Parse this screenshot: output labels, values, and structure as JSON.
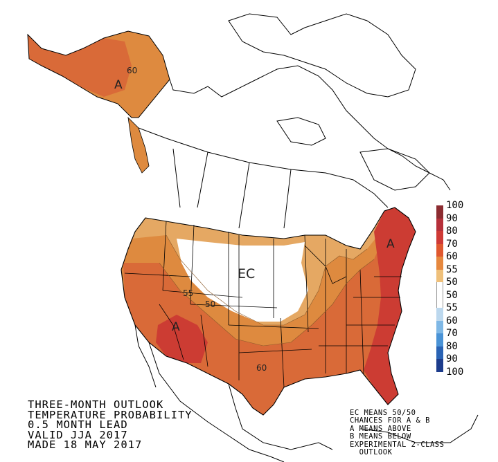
{
  "title_lines": [
    "THREE-MONTH OUTLOOK",
    "TEMPERATURE PROBABILITY",
    "0.5 MONTH LEAD",
    "VALID JJA 2017",
    "MADE 18 MAY 2017"
  ],
  "notes_lines": [
    "EC MEANS 50/50",
    "CHANCES FOR A & B",
    "A MEANS ABOVE",
    "B MEANS BELOW",
    "EXPERIMENTAL 2-CLASS",
    "  OUTLOOK"
  ],
  "map_labels": {
    "alaska_a": "A",
    "alaska_60": "60",
    "northeast_a": "A",
    "southwest_a": "A",
    "ec": "EC",
    "contour_55": "55",
    "contour_50": "50",
    "contour_60": "60"
  },
  "legend": {
    "labels": [
      "100",
      "90",
      "80",
      "70",
      "60",
      "55",
      "50",
      "50",
      "55",
      "60",
      "70",
      "80",
      "90",
      "100"
    ],
    "colors": [
      "#8c2c31",
      "#b6303a",
      "#cf3a36",
      "#e0582f",
      "#e6883e",
      "#efc07a",
      "#ffffff",
      "#ffffff",
      "#bcd8ee",
      "#7fb8e6",
      "#4a93d6",
      "#2a63b4",
      "#1d3c8c",
      "#3d1a6e"
    ]
  },
  "colors": {
    "above_33": "#e5a863",
    "above_40": "#de8a3f",
    "above_50": "#d96a38",
    "above_60": "#cc3c33",
    "land_line": "#000000"
  }
}
